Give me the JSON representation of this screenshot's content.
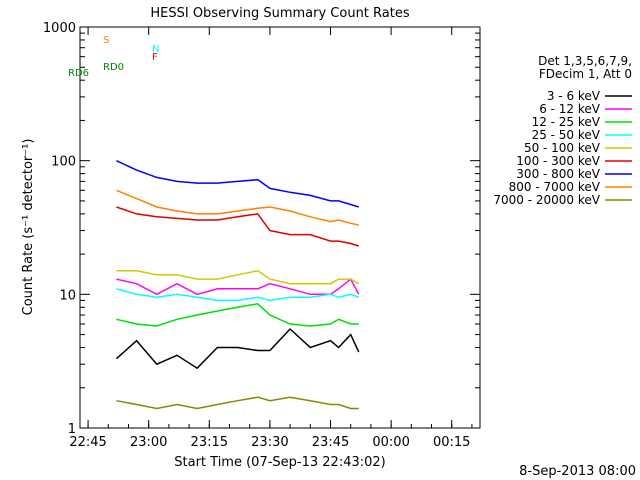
{
  "chart_data": {
    "type": "line",
    "title": "HESSI Observing Summary Count Rates",
    "xlabel": "Start Time (07-Sep-13 22:43:02)",
    "ylabel": "Count Rate (s⁻¹ detector⁻¹)",
    "date_stamp": "8-Sep-2013 08:00",
    "y_scale": "log",
    "ylim": [
      1,
      1000
    ],
    "xlim": [
      "22:43",
      "00:22"
    ],
    "y_ticks": [
      1,
      10,
      100,
      1000
    ],
    "x_ticks": [
      "22:45",
      "23:00",
      "23:15",
      "23:30",
      "23:45",
      "00:00",
      "00:15"
    ],
    "grid": false,
    "legend_position": "right",
    "legend_header": [
      "Det 1,3,5,6,7,9,",
      "FDecim 1, Att 0"
    ],
    "x": [
      "22:52",
      "22:57",
      "23:02",
      "23:07",
      "23:12",
      "23:17",
      "23:22",
      "23:27",
      "23:30",
      "23:35",
      "23:40",
      "23:45",
      "23:47",
      "23:50",
      "23:52"
    ],
    "series": [
      {
        "name": "3 - 6 keV",
        "color": "#000000",
        "values": [
          3.3,
          4.5,
          3.0,
          3.5,
          2.8,
          4.0,
          4.0,
          3.8,
          3.8,
          5.5,
          4.0,
          4.5,
          4.0,
          5.0,
          3.7
        ]
      },
      {
        "name": "6 - 12 keV",
        "color": "#ff00ff",
        "values": [
          13,
          12,
          10,
          12,
          10,
          11,
          11,
          11,
          12,
          11,
          10,
          10,
          11,
          13,
          10
        ]
      },
      {
        "name": "12 - 25 keV",
        "color": "#00dd00",
        "values": [
          6.5,
          6.0,
          5.8,
          6.5,
          7.0,
          7.5,
          8.0,
          8.5,
          7.0,
          6.0,
          5.8,
          6.0,
          6.5,
          6.0,
          6.0
        ]
      },
      {
        "name": "25 - 50 keV",
        "color": "#00ffff",
        "values": [
          11,
          10,
          9.5,
          10,
          9.5,
          9.0,
          9.0,
          9.5,
          9.0,
          9.5,
          9.5,
          10,
          9.5,
          10,
          9.5
        ]
      },
      {
        "name": "50 - 100 keV",
        "color": "#cccc00",
        "values": [
          15,
          15,
          14,
          14,
          13,
          13,
          14,
          15,
          13,
          12,
          12,
          12,
          13,
          13,
          12
        ]
      },
      {
        "name": "100 - 300 keV",
        "color": "#dd0000",
        "values": [
          45,
          40,
          38,
          37,
          36,
          36,
          38,
          40,
          30,
          28,
          28,
          25,
          25,
          24,
          23
        ]
      },
      {
        "name": "300 - 800 keV",
        "color": "#0000ff",
        "values": [
          100,
          85,
          75,
          70,
          68,
          68,
          70,
          72,
          62,
          58,
          55,
          50,
          50,
          47,
          45
        ]
      },
      {
        "name": "800 - 7000 keV",
        "color": "#ff8000",
        "values": [
          60,
          52,
          45,
          42,
          40,
          40,
          42,
          44,
          45,
          42,
          38,
          35,
          36,
          34,
          33
        ]
      },
      {
        "name": "7000 - 20000 keV",
        "color": "#888800",
        "values": [
          1.6,
          1.5,
          1.4,
          1.5,
          1.4,
          1.5,
          1.6,
          1.7,
          1.6,
          1.7,
          1.6,
          1.5,
          1.5,
          1.4,
          1.4
        ]
      }
    ],
    "flags": [
      {
        "label": "S",
        "color": "#ff8000"
      },
      {
        "label": "N",
        "color": "#00ffff"
      },
      {
        "label": "F",
        "color": "#ff0000"
      },
      {
        "label": "RD0",
        "color": "#008800"
      },
      {
        "label": "RD6",
        "color": "#008800"
      }
    ]
  }
}
